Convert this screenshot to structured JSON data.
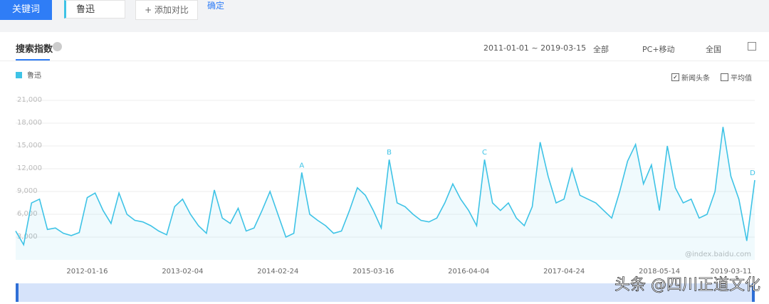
{
  "ui": {
    "keyword_button": "关键词",
    "search_term": "鲁迅",
    "add_compare": "+ 添加对比",
    "confirm": "确定",
    "tab": "搜索指数",
    "date_range": "2011-01-01 ~ 2019-03-15",
    "source": "全部",
    "device": "PC+移动",
    "region": "全国",
    "checkbox_news": "新闻头条",
    "checkbox_average": "平均值",
    "site_mark": "@index.baidu.com",
    "watermark": "头条 @四川正道文化"
  },
  "chart_data": {
    "type": "line",
    "categories": [
      null,
      null,
      null,
      null,
      null,
      null,
      null,
      null,
      null,
      "2012-01-16",
      null,
      null,
      null,
      null,
      null,
      null,
      null,
      null,
      null,
      null,
      null,
      "2013-02-04",
      null,
      null,
      null,
      null,
      null,
      null,
      null,
      null,
      null,
      null,
      null,
      "2014-02-24",
      null,
      null,
      null,
      null,
      null,
      null,
      null,
      null,
      null,
      null,
      null,
      "2015-03-16",
      null,
      null,
      null,
      null,
      null,
      null,
      null,
      null,
      null,
      null,
      null,
      "2016-04-04",
      null,
      null,
      null,
      null,
      null,
      null,
      null,
      null,
      null,
      null,
      null,
      "2017-04-24",
      null,
      null,
      null,
      null,
      null,
      null,
      null,
      null,
      null,
      null,
      null,
      "2018-05-14",
      null,
      null,
      null,
      null,
      null,
      null,
      null,
      null,
      "2019-03-11",
      null,
      null,
      null
    ],
    "series": [
      {
        "name": "鲁迅",
        "color": "#3ec3e6",
        "values": [
          3800,
          2000,
          7500,
          8000,
          4000,
          4200,
          3500,
          3200,
          3600,
          8200,
          8800,
          6500,
          4800,
          8800,
          6000,
          5200,
          5000,
          4500,
          3800,
          3300,
          7000,
          8000,
          6000,
          4500,
          3500,
          9200,
          5500,
          4800,
          6800,
          3800,
          4200,
          6500,
          9000,
          6000,
          3000,
          3500,
          11500,
          6000,
          5200,
          4500,
          3500,
          3800,
          6500,
          9500,
          8500,
          6500,
          4200,
          13200,
          7500,
          7000,
          6000,
          5200,
          5000,
          5500,
          7500,
          10000,
          8000,
          6500,
          4500,
          13200,
          7500,
          6500,
          7500,
          5500,
          4500,
          7000,
          15500,
          11000,
          7500,
          8000,
          12000,
          8500,
          8000,
          7500,
          6500,
          5500,
          9000,
          13000,
          15200,
          10000,
          12500,
          6500,
          15000,
          9500,
          7500,
          8000,
          5500,
          6000,
          9000,
          17500,
          11000,
          8000,
          2500,
          10500
        ]
      }
    ],
    "annotations": [
      "A",
      "B",
      "C",
      "D"
    ],
    "ylim": [
      0,
      21000
    ],
    "yticks": [
      {
        "value": 3000,
        "label": "3,000"
      },
      {
        "value": 6000,
        "label": "6,000"
      },
      {
        "value": 9000,
        "label": "9,000"
      },
      {
        "value": 12000,
        "label": "12,000"
      },
      {
        "value": 15000,
        "label": "15,000"
      },
      {
        "value": 18000,
        "label": "18,000"
      },
      {
        "value": 21000,
        "label": "21,000"
      }
    ],
    "grid": true
  }
}
